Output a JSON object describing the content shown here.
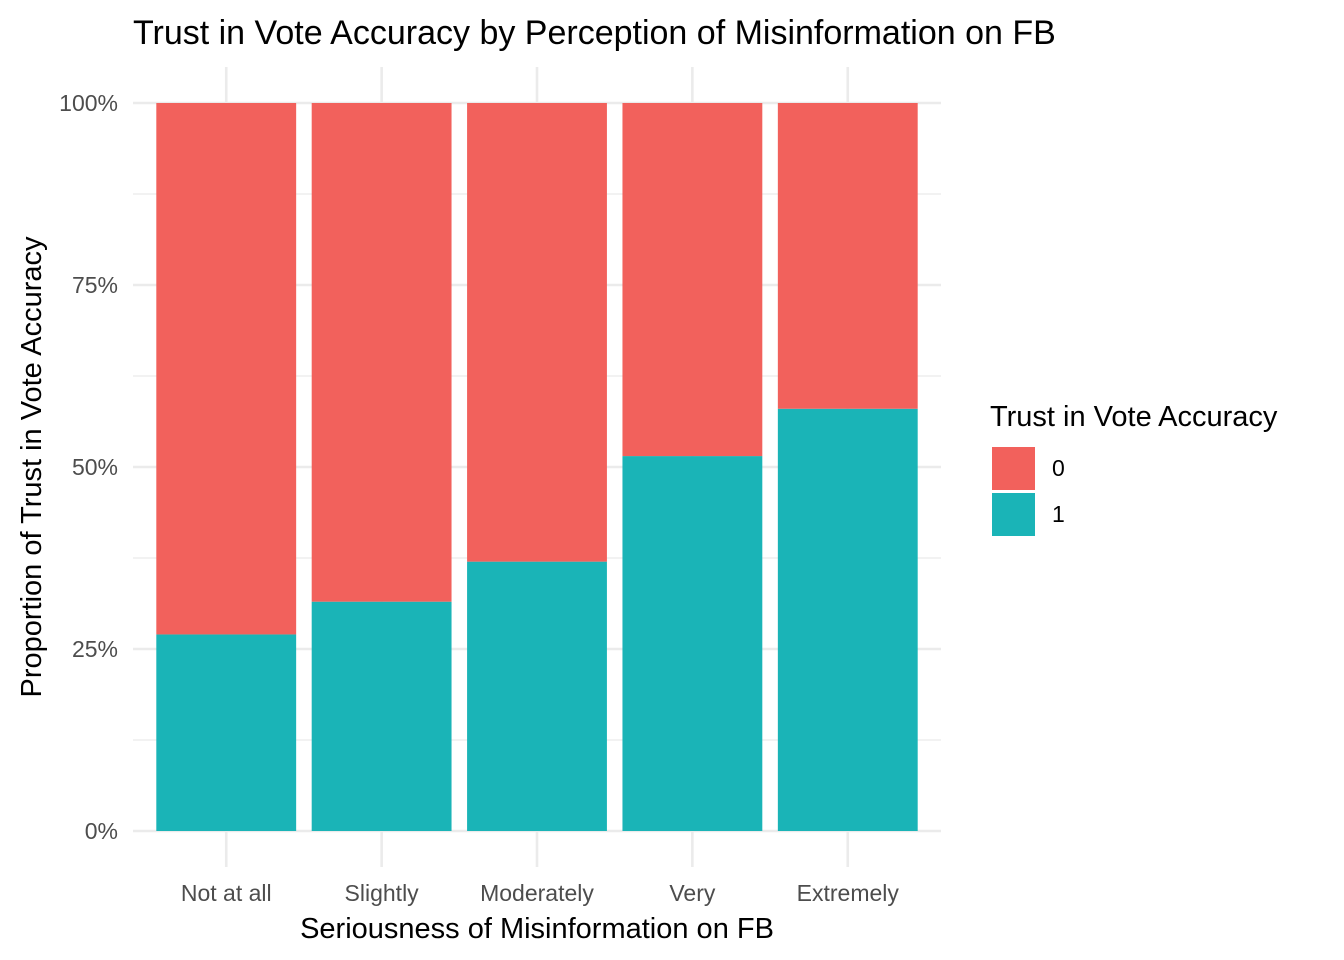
{
  "chart_data": {
    "type": "bar",
    "stacked": true,
    "normalized": true,
    "title": "Trust in Vote Accuracy by Perception of Misinformation on FB",
    "xlabel": "Seriousness of Misinformation on FB",
    "ylabel": "Proportion of Trust in Vote Accuracy",
    "categories": [
      "Not at all",
      "Slightly",
      "Moderately",
      "Very",
      "Extremely"
    ],
    "yticks": [
      {
        "value": 0,
        "label": "0%"
      },
      {
        "value": 0.25,
        "label": "25%"
      },
      {
        "value": 0.5,
        "label": "50%"
      },
      {
        "value": 0.75,
        "label": "75%"
      },
      {
        "value": 1,
        "label": "100%"
      }
    ],
    "ylim": [
      0,
      1
    ],
    "grid": true,
    "legend": {
      "title": "Trust in Vote Accuracy",
      "position": "right"
    },
    "series": [
      {
        "name": "0",
        "color": "#F2615C",
        "values": [
          0.73,
          0.685,
          0.63,
          0.485,
          0.42
        ]
      },
      {
        "name": "1",
        "color": "#1AB4B7",
        "values": [
          0.27,
          0.315,
          0.37,
          0.515,
          0.58
        ]
      }
    ]
  }
}
